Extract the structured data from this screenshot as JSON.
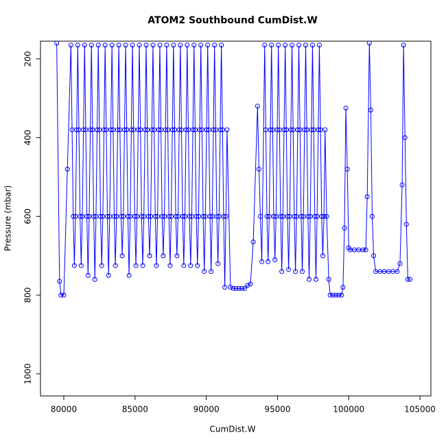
{
  "chart_data": {
    "type": "line",
    "title": "ATOM2 Southbound CumDist.W",
    "x_label": "CumDist.W",
    "y_label": "Pressure (mbar)",
    "xlim": [
      78362,
      105770
    ],
    "ylim": [
      1056,
      155
    ],
    "xticks": [
      80000,
      85000,
      90000,
      95000,
      100000,
      105000
    ],
    "yticks": [
      200,
      400,
      600,
      800,
      1000
    ],
    "markers": true,
    "series": [
      {
        "name": "Pressure",
        "color": "#0000ff",
        "x": [
          79500,
          79700,
          79800,
          80000,
          80250,
          80500,
          80580,
          80660,
          80740,
          80820,
          80900,
          80980,
          81060,
          81140,
          81220,
          81300,
          81380,
          81460,
          81540,
          81620,
          81700,
          81780,
          81860,
          81940,
          82020,
          82100,
          82180,
          82260,
          82340,
          82420,
          82500,
          82580,
          82660,
          82740,
          82820,
          82900,
          82980,
          83060,
          83140,
          83220,
          83300,
          83380,
          83460,
          83540,
          83620,
          83700,
          83780,
          83860,
          83940,
          84020,
          84100,
          84180,
          84260,
          84340,
          84420,
          84500,
          84580,
          84660,
          84740,
          84820,
          84900,
          84980,
          85060,
          85140,
          85220,
          85300,
          85380,
          85460,
          85540,
          85620,
          85700,
          85780,
          85860,
          85940,
          86020,
          86100,
          86180,
          86260,
          86340,
          86420,
          86500,
          86580,
          86660,
          86740,
          86820,
          86900,
          86980,
          87060,
          87140,
          87220,
          87300,
          87380,
          87460,
          87540,
          87620,
          87700,
          87780,
          87860,
          87940,
          88020,
          88100,
          88180,
          88260,
          88340,
          88420,
          88500,
          88580,
          88660,
          88740,
          88820,
          88900,
          88980,
          89060,
          89140,
          89220,
          89300,
          89380,
          89460,
          89540,
          89620,
          89700,
          89780,
          89860,
          89940,
          90020,
          90100,
          90180,
          90260,
          90340,
          90420,
          90500,
          90580,
          90660,
          90740,
          90820,
          90900,
          90980,
          91060,
          91140,
          91220,
          91300,
          91380,
          91460,
          91700,
          91900,
          92100,
          92300,
          92500,
          92700,
          92900,
          93100,
          93300,
          93600,
          93700,
          93800,
          93900,
          94100,
          94180,
          94260,
          94340,
          94420,
          94500,
          94580,
          94660,
          94740,
          94820,
          94900,
          94980,
          95060,
          95140,
          95220,
          95300,
          95380,
          95460,
          95540,
          95620,
          95700,
          95780,
          95860,
          95940,
          96020,
          96100,
          96180,
          96260,
          96340,
          96420,
          96500,
          96580,
          96660,
          96740,
          96820,
          96900,
          96980,
          97060,
          97140,
          97220,
          97300,
          97380,
          97460,
          97540,
          97620,
          97700,
          97780,
          97860,
          97940,
          98020,
          98100,
          98180,
          98260,
          98340,
          98450,
          98600,
          98700,
          98900,
          99100,
          99300,
          99500,
          99600,
          99700,
          99800,
          99900,
          100000,
          100100,
          100400,
          100700,
          101000,
          101200,
          101300,
          101450,
          101550,
          101650,
          101750,
          101900,
          102200,
          102500,
          102800,
          103100,
          103400,
          103600,
          103750,
          103850,
          103950,
          104050,
          104150,
          104300
        ],
        "values": [
          160,
          765,
          800,
          800,
          480,
          165,
          380,
          600,
          725,
          600,
          380,
          165,
          380,
          600,
          725,
          600,
          380,
          165,
          380,
          600,
          750,
          600,
          380,
          165,
          380,
          600,
          760,
          600,
          380,
          165,
          380,
          600,
          725,
          600,
          380,
          165,
          380,
          600,
          750,
          600,
          380,
          165,
          380,
          600,
          725,
          600,
          380,
          165,
          380,
          600,
          700,
          600,
          380,
          165,
          380,
          600,
          750,
          600,
          380,
          165,
          380,
          600,
          725,
          600,
          380,
          165,
          380,
          600,
          725,
          600,
          380,
          165,
          380,
          600,
          700,
          600,
          380,
          165,
          380,
          600,
          725,
          600,
          380,
          165,
          380,
          600,
          700,
          600,
          380,
          165,
          380,
          600,
          725,
          600,
          380,
          165,
          380,
          600,
          700,
          600,
          380,
          165,
          380,
          600,
          725,
          600,
          380,
          165,
          380,
          600,
          725,
          600,
          380,
          165,
          380,
          600,
          725,
          600,
          380,
          165,
          380,
          600,
          740,
          600,
          380,
          165,
          380,
          600,
          740,
          600,
          380,
          165,
          380,
          600,
          720,
          600,
          380,
          165,
          380,
          600,
          780,
          600,
          380,
          780,
          783,
          783,
          783,
          783,
          783,
          775,
          772,
          665,
          320,
          480,
          600,
          715,
          165,
          380,
          600,
          715,
          600,
          380,
          165,
          380,
          600,
          710,
          600,
          380,
          165,
          380,
          600,
          740,
          600,
          380,
          165,
          380,
          600,
          735,
          600,
          380,
          165,
          380,
          600,
          740,
          600,
          380,
          165,
          380,
          600,
          740,
          600,
          380,
          165,
          380,
          600,
          760,
          600,
          380,
          165,
          380,
          600,
          760,
          600,
          380,
          165,
          380,
          600,
          700,
          600,
          380,
          600,
          760,
          800,
          800,
          800,
          800,
          800,
          780,
          630,
          325,
          480,
          680,
          685,
          685,
          685,
          685,
          685,
          550,
          160,
          330,
          600,
          700,
          740,
          740,
          740,
          740,
          740,
          740,
          720,
          520,
          165,
          400,
          620,
          760,
          760
        ]
      }
    ]
  }
}
